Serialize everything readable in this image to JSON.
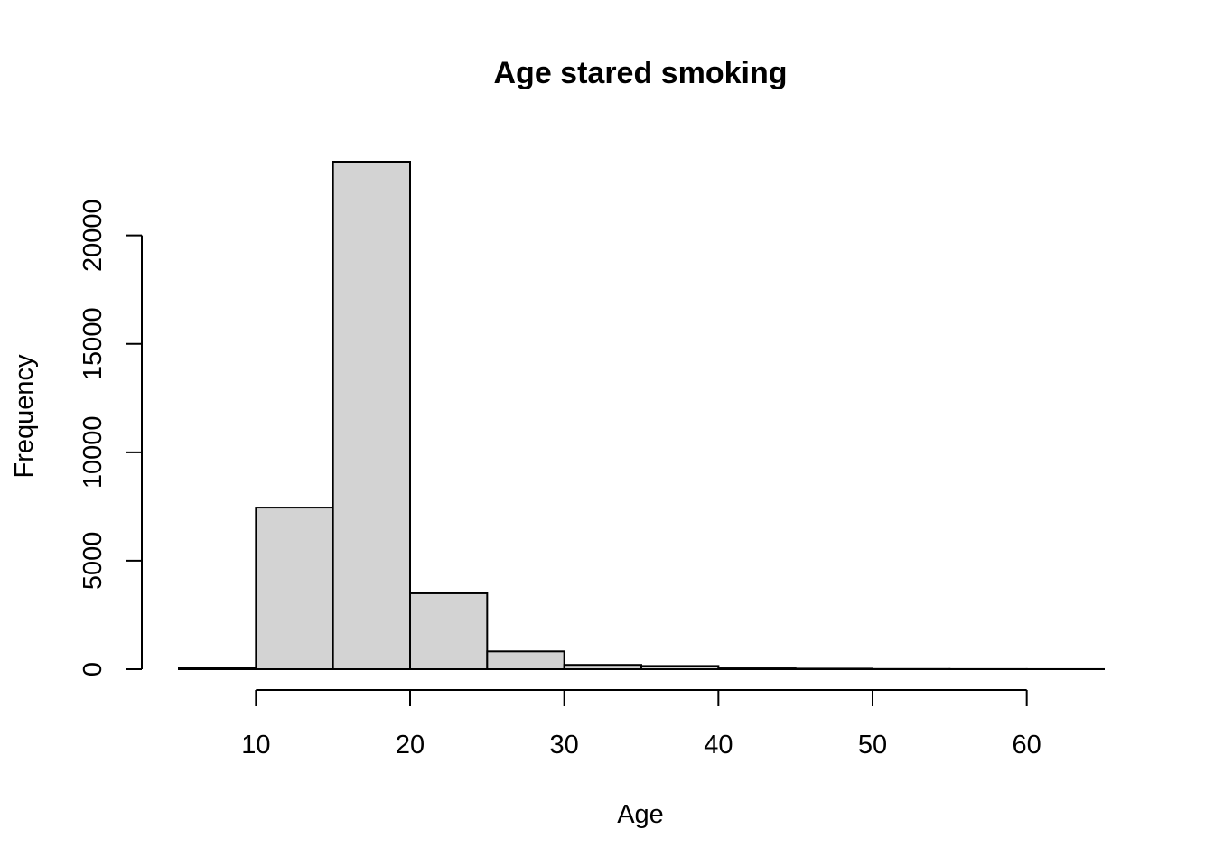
{
  "chart_data": {
    "type": "bar",
    "title": "Age stared smoking",
    "xlabel": "Age",
    "ylabel": "Frequency",
    "bin_edges": [
      5,
      10,
      15,
      20,
      25,
      30,
      35,
      40,
      45,
      50,
      55,
      60,
      65
    ],
    "values": [
      60,
      7450,
      23400,
      3500,
      820,
      200,
      150,
      40,
      25,
      8,
      4,
      2
    ],
    "xlim": [
      5,
      65
    ],
    "ylim": [
      0,
      23400
    ],
    "x_ticks": [
      10,
      20,
      30,
      40,
      50,
      60
    ],
    "y_ticks": [
      0,
      5000,
      10000,
      15000,
      20000
    ],
    "bar_fill": "#d3d3d3",
    "grid": false,
    "legend": "none"
  }
}
